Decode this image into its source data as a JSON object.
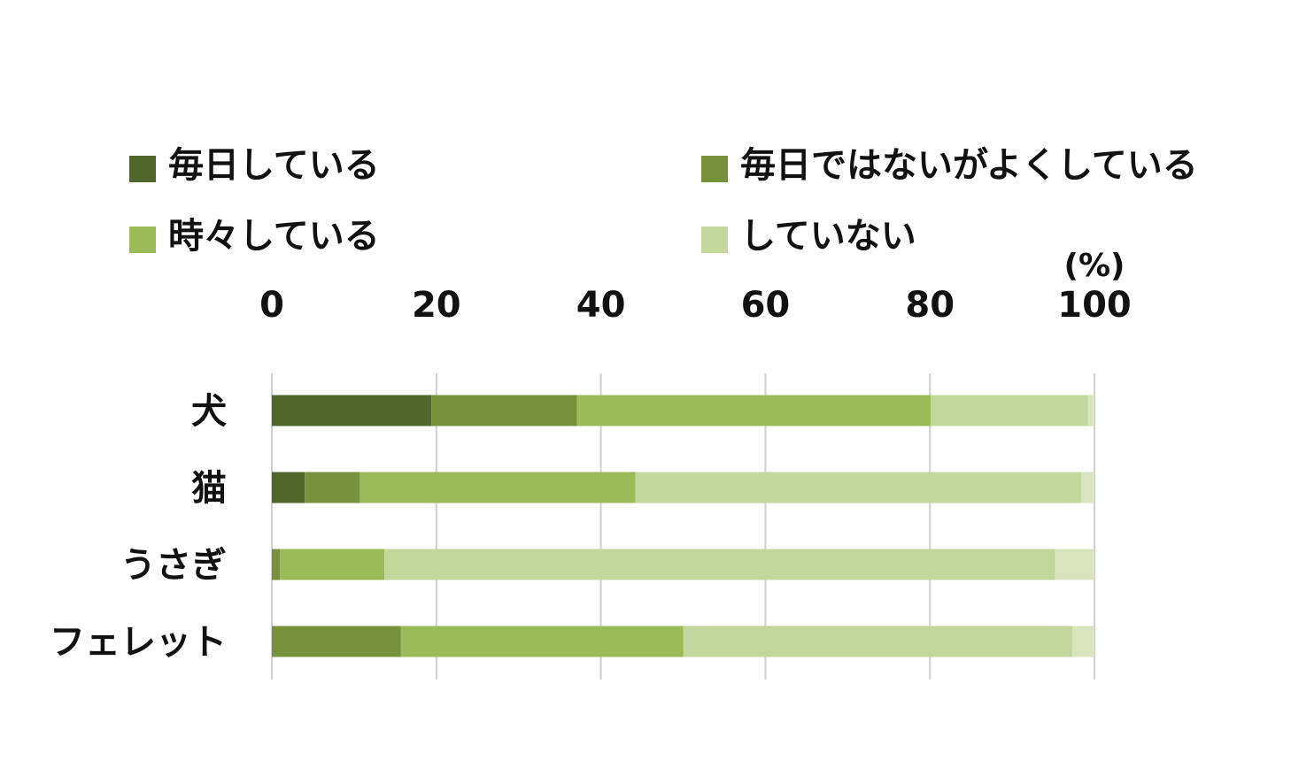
{
  "chart_data": {
    "type": "bar",
    "orientation": "horizontal",
    "stacked": true,
    "unit": "(%)",
    "categories": [
      "犬",
      "猫",
      "うさぎ",
      "フェレット"
    ],
    "series": [
      {
        "name": "毎日している",
        "color": "#536629",
        "values": [
          19.4,
          4.0,
          0.0,
          0.0
        ]
      },
      {
        "name": "毎日ではないがよくしている",
        "color": "#77923b",
        "values": [
          17.7,
          6.7,
          1.0,
          15.7
        ]
      },
      {
        "name": "時々している",
        "color": "#9bbb59",
        "values": [
          43.0,
          33.5,
          12.7,
          34.3
        ]
      },
      {
        "name": "していない",
        "color": "#c3d69b",
        "values": [
          19.1,
          54.2,
          81.5,
          47.3
        ]
      },
      {
        "name": "",
        "color": "#d7e4bd",
        "values": [
          0.8,
          1.6,
          4.8,
          2.7
        ]
      }
    ],
    "x_ticks": [
      "0",
      "20",
      "40",
      "60",
      "80",
      "100"
    ],
    "xlim": [
      0,
      100
    ],
    "grid": true,
    "legend_position": "top"
  }
}
